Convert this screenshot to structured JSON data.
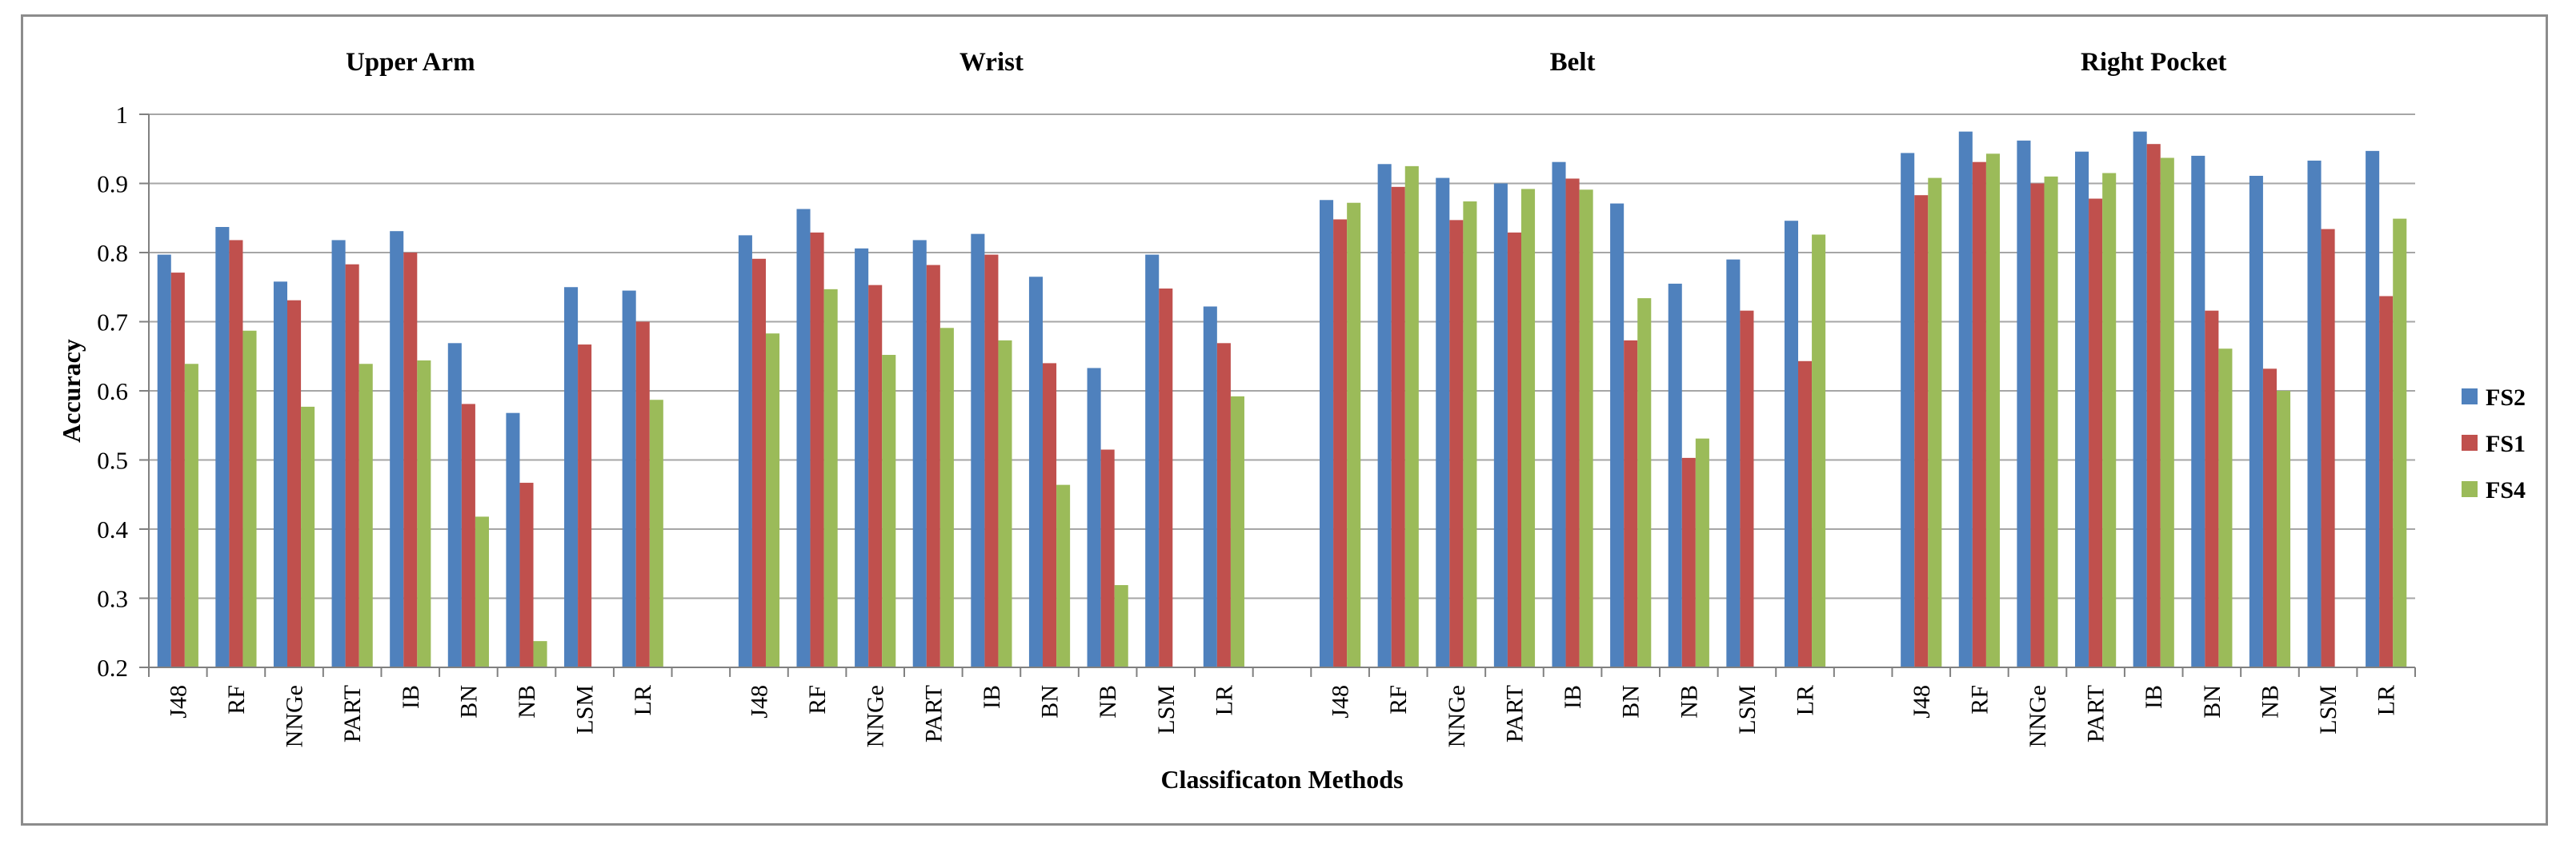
{
  "chart_data": {
    "type": "bar",
    "title": "",
    "xlabel": "Classificaton Methods",
    "ylabel": "Accuracy",
    "ylim": [
      0.2,
      1.0
    ],
    "yticks": [
      "0.2",
      "0.3",
      "0.4",
      "0.5",
      "0.6",
      "0.7",
      "0.8",
      "0.9",
      "1"
    ],
    "grid": true,
    "legend_position": "right",
    "colors": {
      "FS2": "#4f81bd",
      "FS1": "#c0504d",
      "FS4": "#9bbb59"
    },
    "groups": [
      {
        "name": "Upper Arm",
        "categories": [
          "J48",
          "RF",
          "NNGe",
          "PART",
          "IB",
          "BN",
          "NB",
          "LSM",
          "LR"
        ],
        "series": [
          {
            "name": "FS2",
            "values": [
              0.797,
              0.837,
              0.758,
              0.818,
              0.831,
              0.669,
              0.568,
              0.75,
              0.745
            ]
          },
          {
            "name": "FS1",
            "values": [
              0.771,
              0.818,
              0.731,
              0.783,
              0.8,
              0.581,
              0.467,
              0.667,
              0.7
            ]
          },
          {
            "name": "FS4",
            "values": [
              0.639,
              0.687,
              0.577,
              0.639,
              0.644,
              0.418,
              0.238,
              null,
              0.587
            ]
          }
        ]
      },
      {
        "name": "Wrist",
        "categories": [
          "J48",
          "RF",
          "NNGe",
          "PART",
          "IB",
          "BN",
          "NB",
          "LSM",
          "LR"
        ],
        "series": [
          {
            "name": "FS2",
            "values": [
              0.825,
              0.863,
              0.806,
              0.818,
              0.827,
              0.765,
              0.633,
              0.797,
              0.722
            ]
          },
          {
            "name": "FS1",
            "values": [
              0.791,
              0.829,
              0.753,
              0.782,
              0.797,
              0.64,
              0.515,
              0.748,
              0.669
            ]
          },
          {
            "name": "FS4",
            "values": [
              0.683,
              0.747,
              0.652,
              0.691,
              0.673,
              0.464,
              0.319,
              null,
              0.592
            ]
          }
        ]
      },
      {
        "name": "Belt",
        "categories": [
          "J48",
          "RF",
          "NNGe",
          "PART",
          "IB",
          "BN",
          "NB",
          "LSM",
          "LR"
        ],
        "series": [
          {
            "name": "FS2",
            "values": [
              0.876,
              0.928,
              0.908,
              0.9,
              0.931,
              0.871,
              0.755,
              0.79,
              0.846
            ]
          },
          {
            "name": "FS1",
            "values": [
              0.848,
              0.895,
              0.847,
              0.829,
              0.907,
              0.673,
              0.503,
              0.716,
              0.643
            ]
          },
          {
            "name": "FS4",
            "values": [
              0.872,
              0.925,
              0.874,
              0.892,
              0.891,
              0.734,
              0.531,
              null,
              0.826
            ]
          }
        ]
      },
      {
        "name": "Right Pocket",
        "categories": [
          "J48",
          "RF",
          "NNGe",
          "PART",
          "IB",
          "BN",
          "NB",
          "LSM",
          "LR"
        ],
        "series": [
          {
            "name": "FS2",
            "values": [
              0.944,
              0.975,
              0.962,
              0.946,
              0.975,
              0.94,
              0.911,
              0.933,
              0.947
            ]
          },
          {
            "name": "FS1",
            "values": [
              0.883,
              0.931,
              0.9,
              0.878,
              0.957,
              0.716,
              0.632,
              0.834,
              0.737
            ]
          },
          {
            "name": "FS4",
            "values": [
              0.908,
              0.943,
              0.91,
              0.915,
              0.937,
              0.661,
              0.6,
              null,
              0.849
            ]
          }
        ]
      }
    ]
  }
}
